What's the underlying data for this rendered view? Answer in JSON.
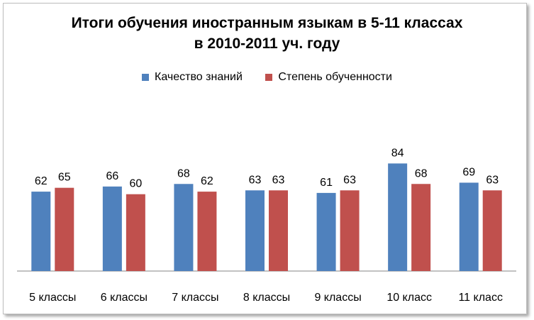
{
  "chart_data": {
    "type": "bar",
    "title_line1": "Итоги обучения иностранным языкам в 5-11 классах",
    "title_line2": "в 2010-2011 уч. году",
    "categories": [
      "5 классы",
      "6 классы",
      "7 классы",
      "8 классы",
      "9 классы",
      "10 класс",
      "11 класс"
    ],
    "series": [
      {
        "name": "Качество знаний",
        "values": [
          62,
          66,
          68,
          63,
          61,
          84,
          69
        ],
        "color": "#4f81bd"
      },
      {
        "name": "Степень обученности",
        "values": [
          65,
          60,
          62,
          63,
          63,
          68,
          63
        ],
        "color": "#c0504d"
      }
    ],
    "ylim": [
      0,
      100
    ],
    "legend_position": "top",
    "grid": false,
    "data_labels": true
  }
}
